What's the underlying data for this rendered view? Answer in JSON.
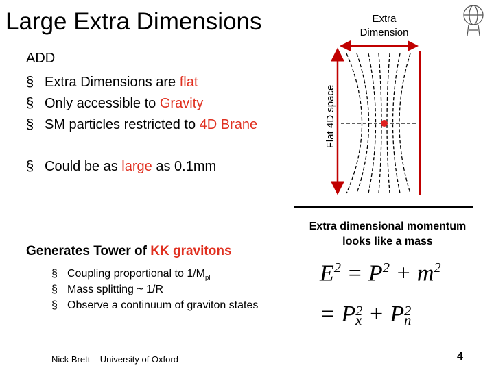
{
  "header": {
    "title": "Large Extra Dimensions"
  },
  "bullet": "§",
  "add": {
    "heading": "ADD",
    "items": [
      [
        "Extra Dimensions are ",
        "flat"
      ],
      [
        "Only accessible to ",
        "Gravity"
      ],
      [
        "SM particles restricted to ",
        "4D Brane"
      ],
      [
        "Could be as ",
        "large",
        " as 0.1mm"
      ]
    ]
  },
  "tower": {
    "heading": [
      "Generates Tower of ",
      "KK gravitons"
    ],
    "items": [
      [
        "Coupling proportional to 1/M",
        "pl"
      ],
      [
        "Mass splitting ~ 1/R"
      ],
      [
        "Observe a continuum of graviton states"
      ]
    ]
  },
  "diagram": {
    "top_label": "Extra Dimension",
    "side_label": "Flat 4D space"
  },
  "momentum": {
    "caption": "Extra dimensional momentum looks like a mass",
    "eq1": [
      "E",
      "2",
      " = P",
      "2",
      " + m",
      "2"
    ],
    "eq2": [
      "= P",
      "2",
      "x",
      " + P",
      "2",
      "n"
    ]
  },
  "footer": {
    "author": "Nick Brett – University of Oxford",
    "page": "4"
  }
}
